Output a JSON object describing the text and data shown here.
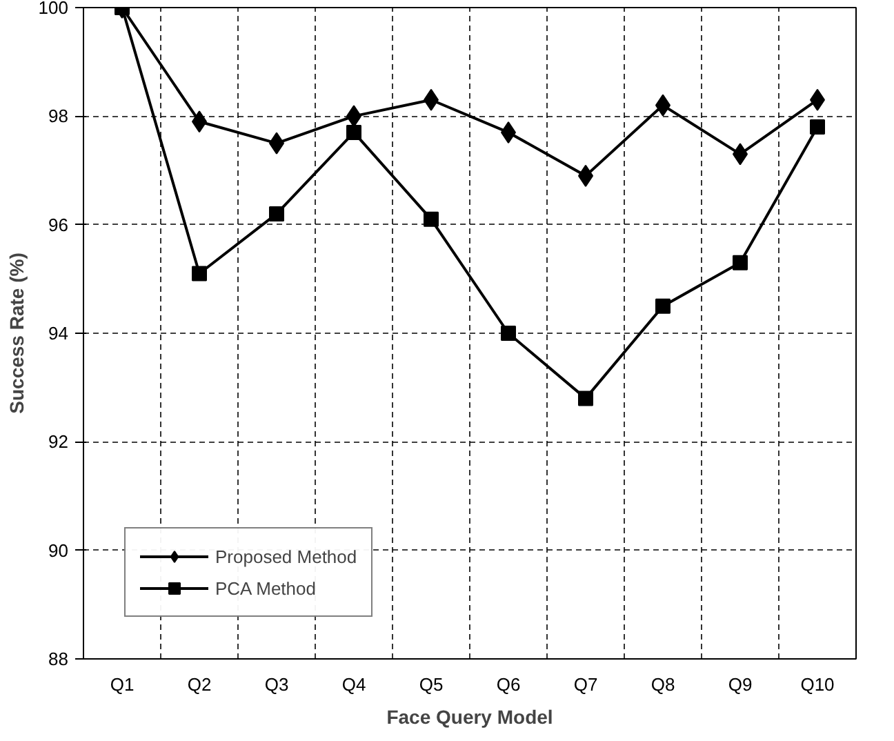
{
  "chart_data": {
    "type": "line",
    "xlabel": "Face Query Model",
    "ylabel": "Success Rate (%)",
    "categories": [
      "Q1",
      "Q2",
      "Q3",
      "Q4",
      "Q5",
      "Q6",
      "Q7",
      "Q8",
      "Q9",
      "Q10"
    ],
    "ylim": [
      88,
      100
    ],
    "yticks": [
      88,
      90,
      92,
      94,
      96,
      98,
      100
    ],
    "grid": true,
    "legend": "bottom left",
    "line_style": "solid",
    "series": [
      {
        "name": "Proposed Method",
        "color": "#000000",
        "marker": "diamond",
        "values": [
          100,
          97.9,
          97.5,
          98.0,
          98.3,
          97.7,
          96.9,
          98.2,
          97.3,
          98.3
        ]
      },
      {
        "name": "PCA Method",
        "color": "#000000",
        "marker": "square",
        "values": [
          100,
          95.1,
          96.2,
          97.7,
          96.1,
          94.0,
          92.8,
          94.5,
          95.3,
          97.8
        ]
      }
    ]
  }
}
